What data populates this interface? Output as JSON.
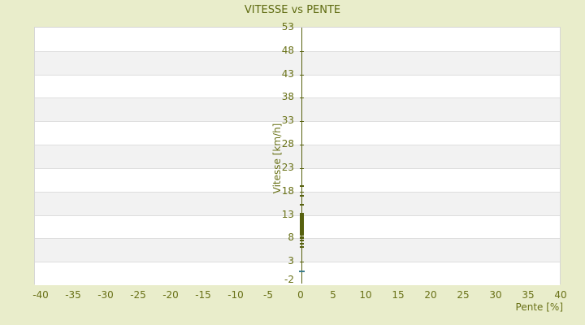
{
  "page": {
    "title": "VITESSE vs PENTE"
  },
  "chart_data": {
    "type": "scatter",
    "title": "VITESSE vs PENTE",
    "xlabel": "Pente [%]",
    "ylabel": "Vitesse [km/h]",
    "xlim": [
      -41,
      40
    ],
    "ylim": [
      -2,
      53
    ],
    "x_ticks": [
      -40,
      -35,
      -30,
      -25,
      -20,
      -15,
      -10,
      -5,
      0,
      5,
      10,
      15,
      20,
      25,
      30,
      35,
      40
    ],
    "y_ticks": [
      53,
      48,
      43,
      38,
      33,
      28,
      23,
      18,
      13,
      8,
      3,
      -2
    ],
    "grid": "horizontal-bands",
    "legend": "none",
    "series": [
      {
        "name": "vitesse-vs-pente-points",
        "marker": "dash",
        "color": "#57610F",
        "x": 0,
        "y_values": [
          19.1,
          17.0,
          15.1,
          13.3,
          13.0,
          12.7,
          12.4,
          12.1,
          11.8,
          11.5,
          11.2,
          10.9,
          10.6,
          10.3,
          10.0,
          9.7,
          9.4,
          9.1,
          8.8,
          8.3,
          7.6,
          6.9,
          6.2
        ]
      },
      {
        "name": "highlight-point",
        "marker": "dash",
        "color": "#3C7D8C",
        "x": 0,
        "y_values": [
          1.0
        ]
      }
    ]
  },
  "colors": {
    "background": "#E9EDCB",
    "plot_background": "#FFFFFF",
    "band_fill": "#F2F2F2",
    "gridline": "#DEDEDE",
    "plot_border": "#D6D6D6",
    "title_text": "#5E6A10",
    "label_text": "#697117",
    "axis_and_points": "#57610F",
    "highlight_point": "#3C7D8C"
  }
}
